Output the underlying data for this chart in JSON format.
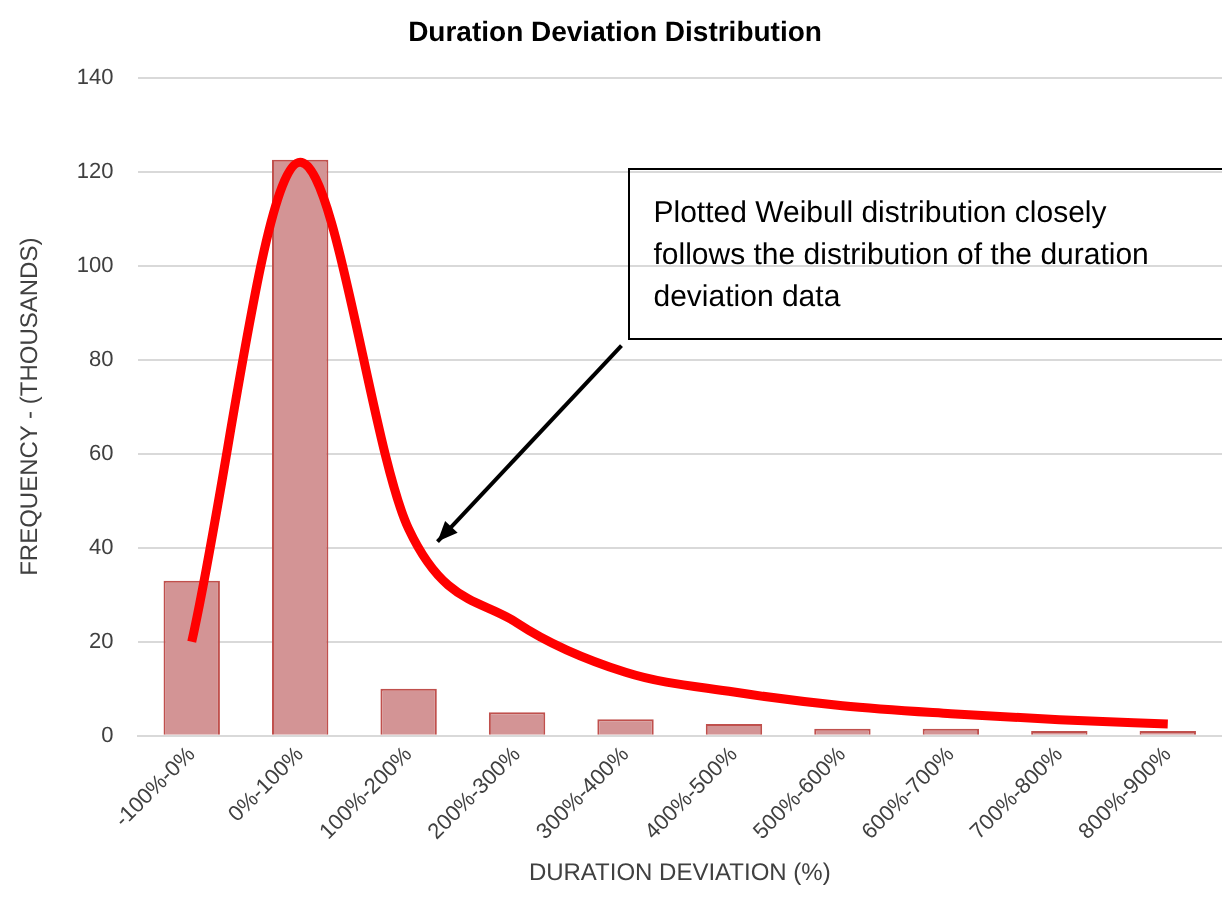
{
  "chart_data": {
    "type": "bar",
    "title": "Duration Deviation Distribution",
    "xlabel": "DURATION DEVIATION (%)",
    "ylabel": "FREQUENCY - (THOUSANDS)",
    "categories": [
      "-100%-0%",
      "0%-100%",
      "100%-200%",
      "200%-300%",
      "300%-400%",
      "400%-500%",
      "500%-600%",
      "600%-700%",
      "700%-800%",
      "800%-900%"
    ],
    "series": [
      {
        "color": "#d39495",
        "values": [
          33,
          122.5,
          10,
          5,
          3.5,
          2.5,
          1.5,
          1.5,
          1,
          1
        ]
      },
      {
        "type": "line",
        "color": "#ff0000",
        "x": [
          "-100%-0%",
          "0%-100%",
          "100%-200%",
          "200%-300%",
          "300%-400%",
          "400%-500%",
          "500%-600%",
          "600%-700%",
          "700%-800%",
          "800%-900%"
        ],
        "values": [
          20,
          122,
          44,
          24,
          13.5,
          9.3,
          6.4,
          4.7,
          3.4,
          2.5
        ]
      }
    ],
    "ylim": [
      0,
      140
    ],
    "yticks": [
      0,
      20,
      40,
      60,
      80,
      100,
      120,
      140
    ],
    "grid": "y",
    "legend": false,
    "marker": "none",
    "line_style": "solid",
    "annotations": [
      "Plotted Weibull distribution closely follows the distribution of the duration deviation data"
    ]
  }
}
